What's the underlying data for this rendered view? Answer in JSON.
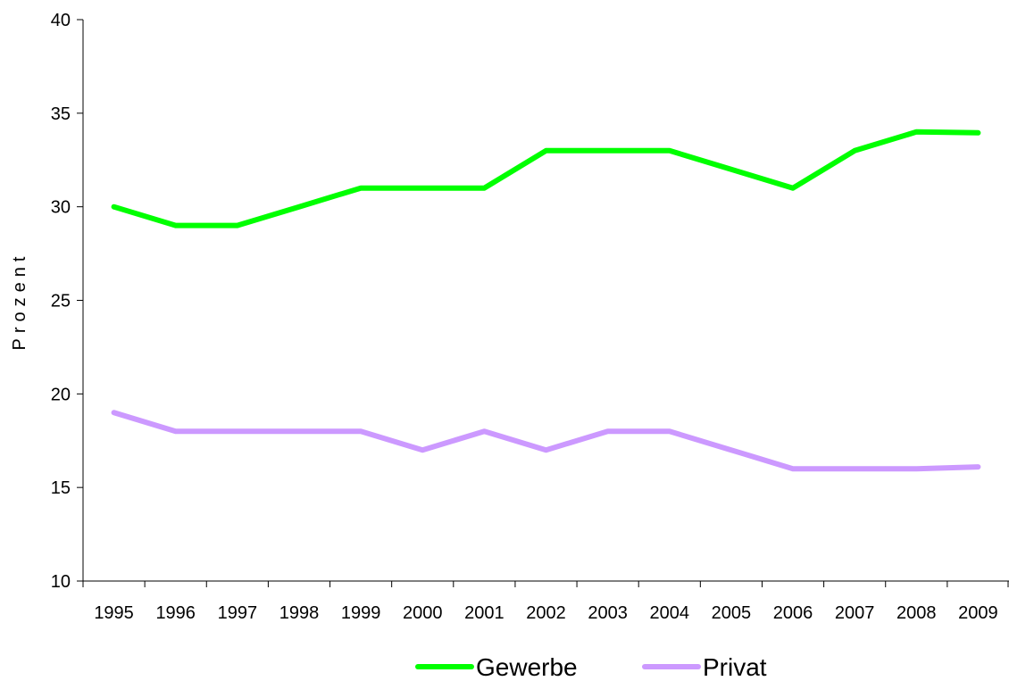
{
  "chart_data": {
    "type": "line",
    "title": "",
    "xlabel": "",
    "ylabel": "Prozent",
    "ylim": [
      10,
      40
    ],
    "yticks": [
      10,
      15,
      20,
      25,
      30,
      35,
      40
    ],
    "categories": [
      "1995",
      "1996",
      "1997",
      "1998",
      "1999",
      "2000",
      "2001",
      "2002",
      "2003",
      "2004",
      "2005",
      "2006",
      "2007",
      "2008",
      "2009"
    ],
    "series": [
      {
        "name": "Gewerbe",
        "color": "#00ff00",
        "values": [
          30,
          29,
          29,
          30,
          31,
          31,
          31,
          33,
          33,
          33,
          32,
          31,
          33,
          34,
          33.95
        ]
      },
      {
        "name": "Privat",
        "color": "#cc99ff",
        "values": [
          19,
          18,
          18,
          18,
          18,
          17,
          18,
          17,
          18,
          18,
          17,
          16,
          16,
          16,
          16.1
        ]
      }
    ],
    "grid": false,
    "legend_position": "bottom"
  }
}
